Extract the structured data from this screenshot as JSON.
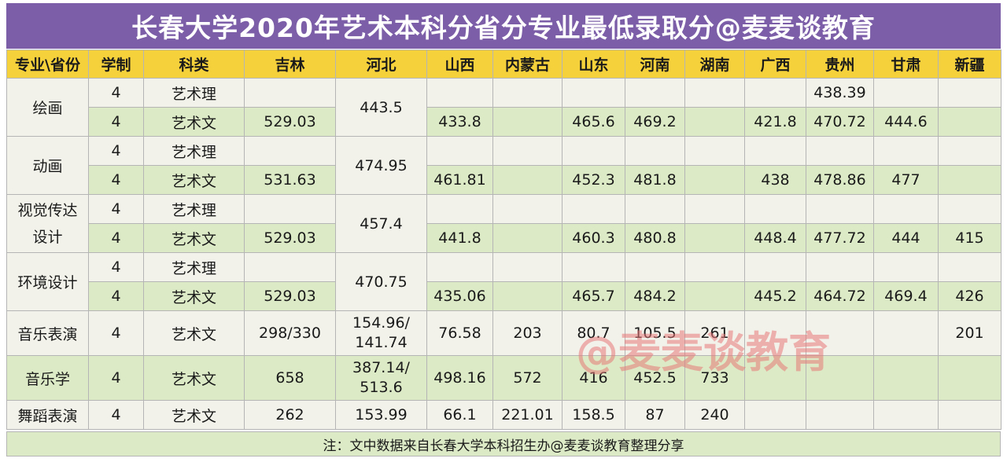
{
  "title": "长春大学2020年艺术本科分省分专业最低录取分@麦麦谈教育",
  "headers": [
    "专业\\省份",
    "学制",
    "科类",
    "吉林",
    "河北",
    "山西",
    "内蒙古",
    "山东",
    "河南",
    "湖南",
    "广西",
    "贵州",
    "甘肃",
    "新疆"
  ],
  "majors": {
    "huihua": "绘画",
    "donghua": "动画",
    "shijue": "视觉传达设计",
    "huanjing": "环境设计",
    "yinyuebiaoyan": "音乐表演",
    "yinyuexue": "音乐学",
    "wudao": "舞蹈表演"
  },
  "xuezhi": "4",
  "kelei": {
    "li": "艺术理",
    "wen": "艺术文"
  },
  "rows": {
    "huihua_li": {
      "guizhou": "438.39"
    },
    "huihua_wen": {
      "jilin": "529.03",
      "shanxi": "433.8",
      "shandong": "465.6",
      "henan": "469.2",
      "guangxi": "421.8",
      "guizhou": "470.72",
      "gansu": "444.6"
    },
    "huihua_hebei": "443.5",
    "donghua_wen": {
      "jilin": "531.63",
      "shanxi": "461.81",
      "shandong": "452.3",
      "henan": "481.8",
      "guangxi": "438",
      "guizhou": "478.86",
      "gansu": "477"
    },
    "donghua_hebei": "474.95",
    "shijue_wen": {
      "jilin": "529.03",
      "shanxi": "441.8",
      "shandong": "460.3",
      "henan": "480.8",
      "guangxi": "448.4",
      "guizhou": "477.72",
      "gansu": "444",
      "xinjiang": "415"
    },
    "shijue_hebei": "457.4",
    "huanjing_wen": {
      "jilin": "529.03",
      "shanxi": "435.06",
      "shandong": "465.7",
      "henan": "484.2",
      "guangxi": "445.2",
      "guizhou": "464.72",
      "gansu": "469.4",
      "xinjiang": "426"
    },
    "huanjing_hebei": "470.75",
    "yinyuebiaoyan": {
      "jilin": "298/330",
      "hebei": "154.96/\n141.74",
      "shanxi": "76.58",
      "neimenggu": "203",
      "shandong": "80.7",
      "henan": "105.5",
      "hunan": "261",
      "xinjiang": "201"
    },
    "yinyuexue": {
      "jilin": "658",
      "hebei": "387.14/\n513.6",
      "shanxi": "498.16",
      "neimenggu": "572",
      "shandong": "416",
      "henan": "452.5",
      "hunan": "733"
    },
    "wudao": {
      "jilin": "262",
      "hebei": "153.99",
      "shanxi": "66.1",
      "neimenggu": "221.01",
      "shandong": "158.5",
      "henan": "87",
      "hunan": "240"
    }
  },
  "note": "注：文中数据来自长春大学本科招生办@麦麦谈教育整理分享",
  "watermark": "@麦麦谈教育",
  "colors": {
    "title_bg": "#7b5ea7",
    "header_bg": "#f5d13b",
    "row_light": "#f2f2ea",
    "row_green": "#dcebc6"
  }
}
